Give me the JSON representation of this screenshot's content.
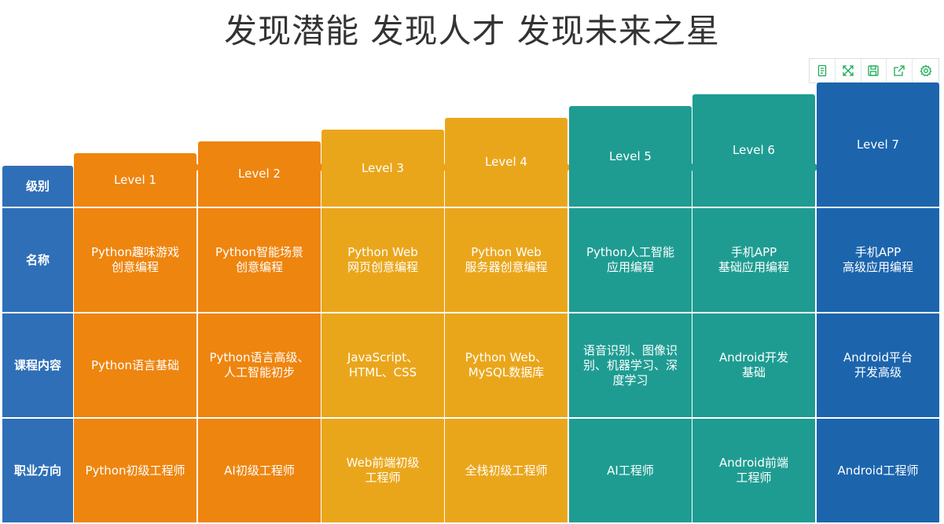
{
  "title": "发现潜能 发现人才 发现未来之星",
  "toolbar": {
    "buttons": [
      {
        "icon": "data-view-icon"
      },
      {
        "icon": "zoom-icon"
      },
      {
        "icon": "save-image-icon"
      },
      {
        "icon": "share-icon"
      },
      {
        "icon": "settings-icon"
      }
    ],
    "color": "#1aaa55"
  },
  "row_headers": [
    "级别",
    "名称",
    "课程内容",
    "职业方向"
  ],
  "header_color": "#2f6fb7",
  "levels": [
    {
      "label": "Level 1",
      "name": "Python趣味游戏\n创意编程",
      "content": "Python语言基础",
      "career": "Python初级工程师",
      "color": "#ee850f"
    },
    {
      "label": "Level 2",
      "name": "Python智能场景\n创意编程",
      "content": "Python语言高级、\n人工智能初步",
      "career": "AI初级工程师",
      "color": "#ee850f"
    },
    {
      "label": "Level 3",
      "name": "Python Web\n网页创意编程",
      "content": "JavaScript、\nHTML、CSS",
      "career": "Web前端初级\n工程师",
      "color": "#eaa61b"
    },
    {
      "label": "Level 4",
      "name": "Python Web\n服务器创意编程",
      "content": "Python Web、\nMySQL数据库",
      "career": "全栈初级工程师",
      "color": "#eaa61b"
    },
    {
      "label": "Level 5",
      "name": "Python人工智能\n应用编程",
      "content": "语音识别、图像识\n别、机器学习、深\n度学习",
      "career": "AI工程师",
      "color": "#1f9c92"
    },
    {
      "label": "Level 6",
      "name": "手机APP\n基础应用编程",
      "content": "Android开发\n基础",
      "career": "Android前端\n工程师",
      "color": "#1f9c92"
    },
    {
      "label": "Level 7",
      "name": "手机APP\n高级应用编程",
      "content": "Android平台\n开发高级",
      "career": "Android工程师",
      "color": "#1c65ad"
    }
  ]
}
